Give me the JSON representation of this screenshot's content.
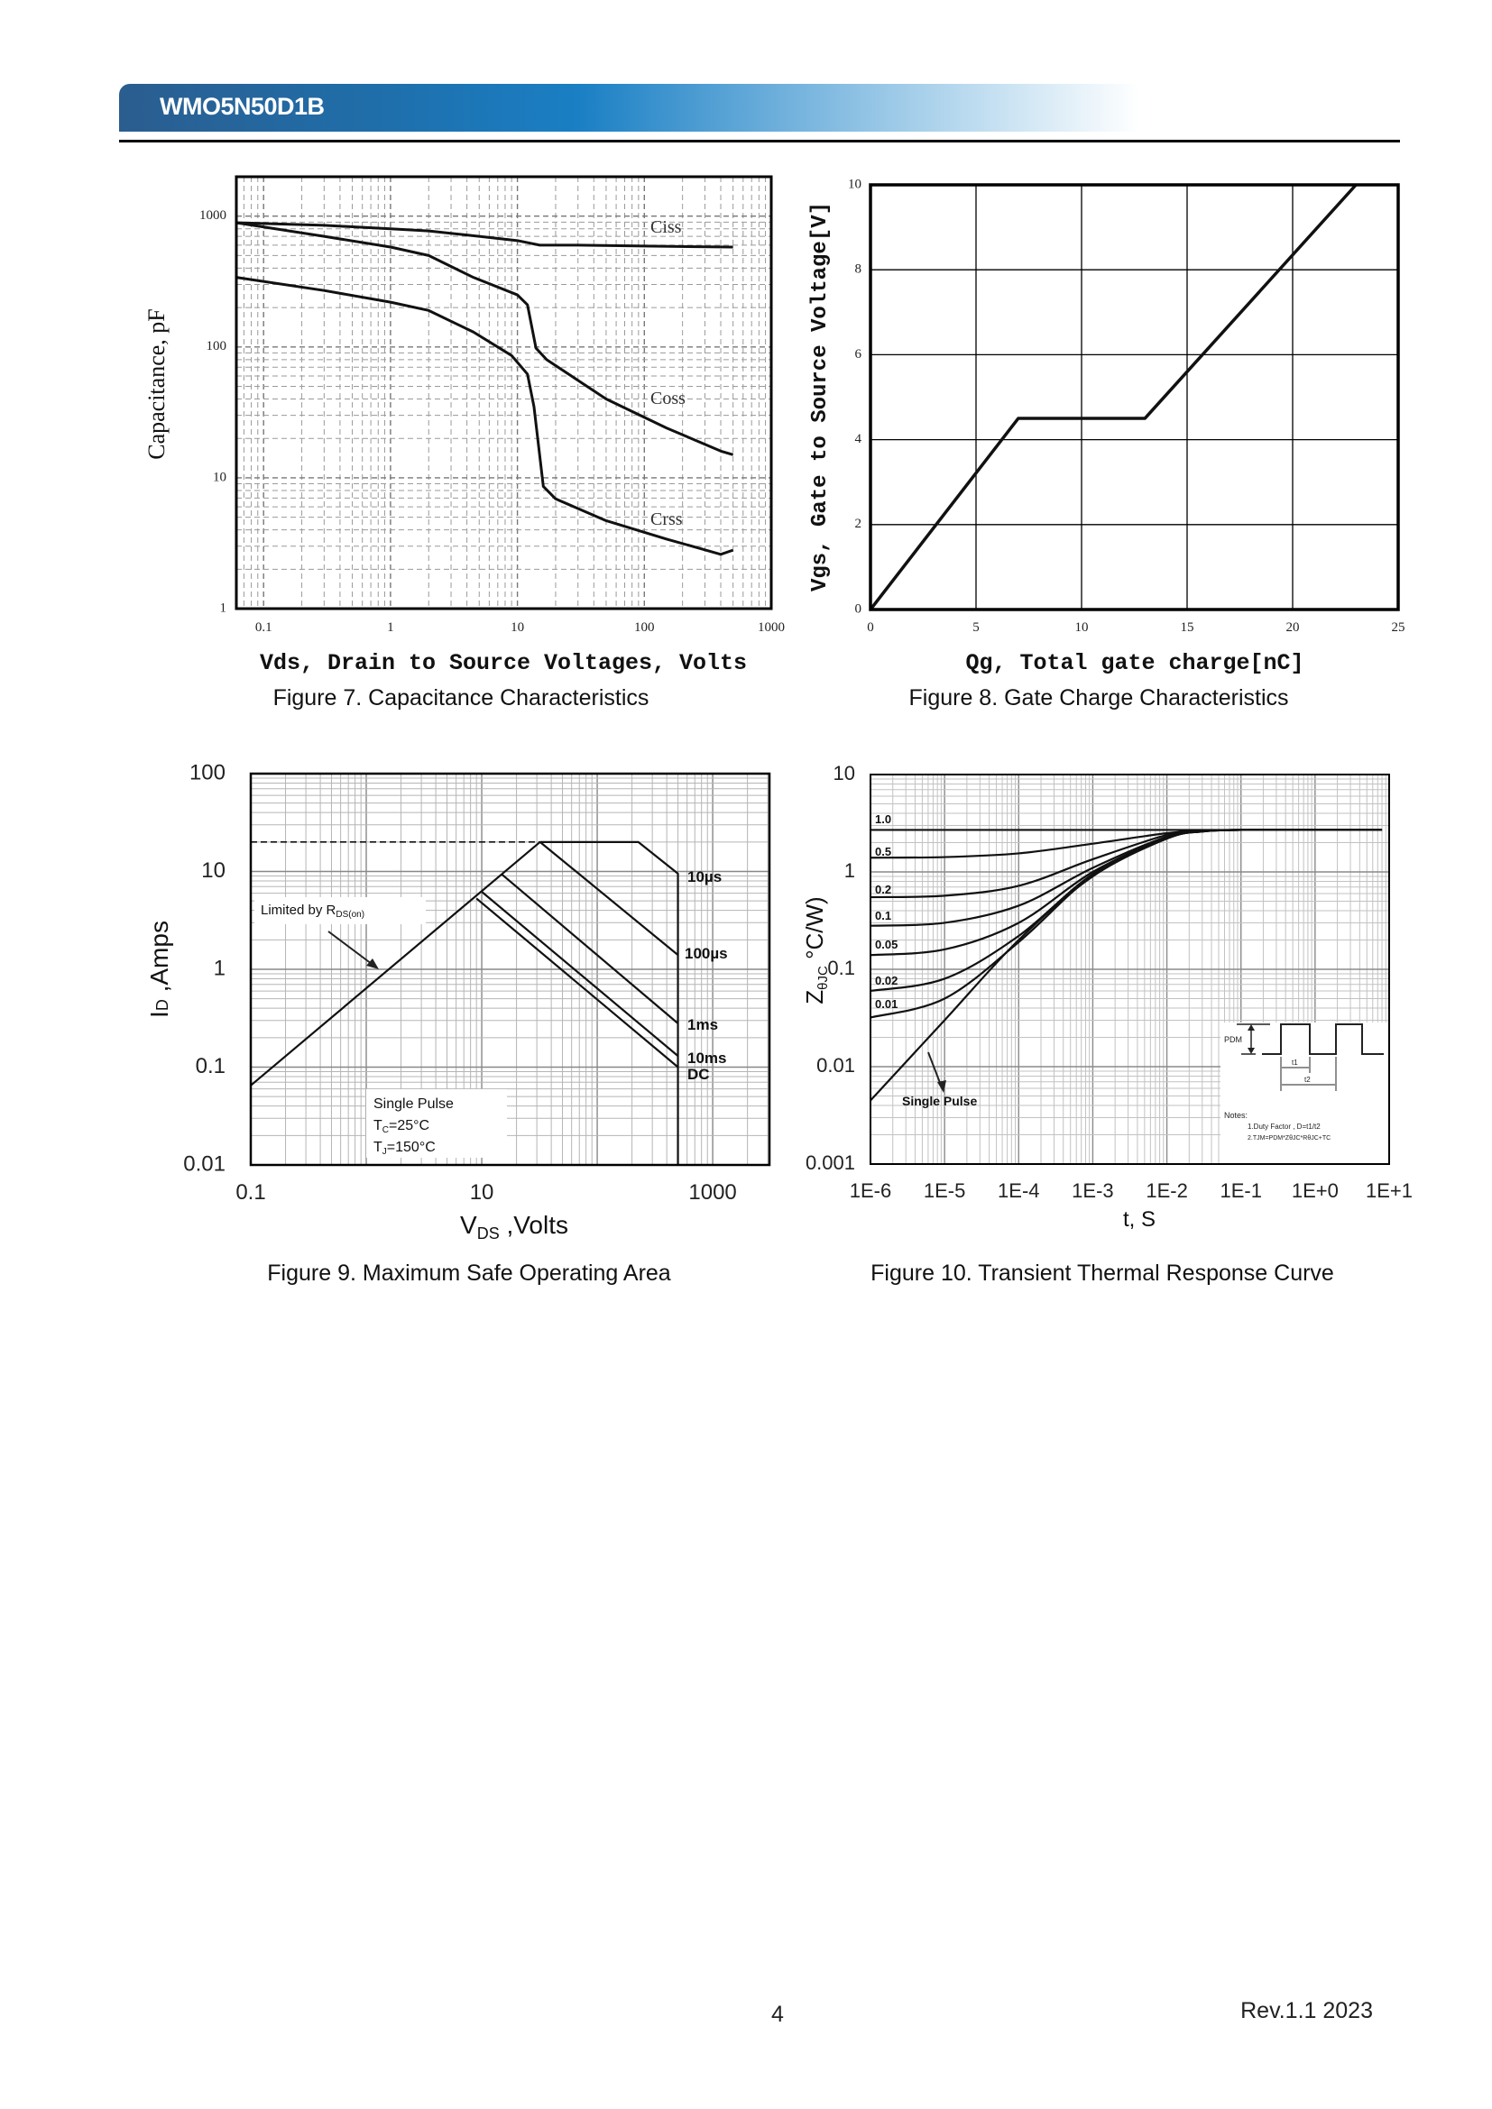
{
  "header": {
    "title": "WMO5N50D1B",
    "brand_color": "#1a7fc4"
  },
  "footer": {
    "page": "4",
    "revision": "Rev.1.1 2023"
  },
  "chart_data": [
    {
      "id": "fig7",
      "type": "line",
      "title": "Figure 7. Capacitance Characteristics",
      "xlabel": "Vds, Drain to Source Voltages, Volts",
      "ylabel": "Capacitance, pF",
      "x_scale": "log",
      "y_scale": "log",
      "xlim": [
        0.061,
        1000
      ],
      "ylim": [
        1,
        2000
      ],
      "grid": "dashed",
      "xticks": [
        {
          "v": 0.1,
          "label": "0.1"
        },
        {
          "v": 1,
          "label": "1"
        },
        {
          "v": 10,
          "label": "10"
        },
        {
          "v": 100,
          "label": "100"
        },
        {
          "v": 1000,
          "label": "1000"
        }
      ],
      "yticks": [
        {
          "v": 1,
          "label": "1"
        },
        {
          "v": 10,
          "label": "10"
        },
        {
          "v": 100,
          "label": "100"
        },
        {
          "v": 1000,
          "label": "1000"
        }
      ],
      "series": [
        {
          "name": "Ciss",
          "x": [
            0.061,
            0.3,
            1,
            2,
            5,
            10,
            15,
            30,
            100,
            500
          ],
          "y": [
            890,
            850,
            800,
            770,
            700,
            650,
            600,
            600,
            590,
            580
          ]
        },
        {
          "name": "Coss",
          "x": [
            0.061,
            0.3,
            1,
            2,
            4.5,
            10,
            12,
            14,
            17,
            50,
            150,
            400,
            500
          ],
          "y": [
            890,
            700,
            580,
            500,
            340,
            250,
            210,
            98,
            80,
            40,
            24,
            16,
            15
          ]
        },
        {
          "name": "Crss",
          "x": [
            0.061,
            0.3,
            1,
            2,
            4.5,
            9,
            12,
            13.5,
            16,
            20,
            50,
            150,
            400,
            500
          ],
          "y": [
            340,
            270,
            220,
            190,
            130,
            86,
            62,
            35,
            8.6,
            6.9,
            4.7,
            3.4,
            2.6,
            2.8
          ]
        }
      ]
    },
    {
      "id": "fig8",
      "type": "line",
      "title": "Figure 8. Gate Charge Characteristics",
      "xlabel": "Qg, Total gate charge[nC]",
      "ylabel": "Vgs, Gate to Source Voltage[V]",
      "x_scale": "linear",
      "y_scale": "linear",
      "xlim": [
        0,
        25
      ],
      "ylim": [
        0,
        10
      ],
      "grid": "solid",
      "xticks": [
        {
          "v": 0,
          "label": "0"
        },
        {
          "v": 5,
          "label": "5"
        },
        {
          "v": 10,
          "label": "10"
        },
        {
          "v": 15,
          "label": "15"
        },
        {
          "v": 20,
          "label": "20"
        },
        {
          "v": 25,
          "label": "25"
        }
      ],
      "yticks": [
        {
          "v": 0,
          "label": "0"
        },
        {
          "v": 2,
          "label": "2"
        },
        {
          "v": 4,
          "label": "4"
        },
        {
          "v": 6,
          "label": "6"
        },
        {
          "v": 8,
          "label": "8"
        },
        {
          "v": 10,
          "label": "10"
        }
      ],
      "series": [
        {
          "x": [
            0,
            7,
            13,
            23
          ],
          "y": [
            0,
            4.5,
            4.5,
            10
          ]
        }
      ]
    },
    {
      "id": "fig9",
      "type": "line",
      "title": "Figure 9. Maximum Safe Operating Area",
      "xlabel": {
        "main": "V",
        "sub": "DS",
        "rest": " ,Volts"
      },
      "ylabel": {
        "main": "I",
        "sub": "D",
        "rest": " ,Amps"
      },
      "x_scale": "log",
      "y_scale": "log",
      "xlim": [
        0.1,
        3100
      ],
      "ylim": [
        0.01,
        100
      ],
      "grid": "solid",
      "xticks": [
        {
          "v": 0.1,
          "label": "0.1"
        },
        {
          "v": 10,
          "label": "10"
        },
        {
          "v": 1000,
          "label": "1000"
        }
      ],
      "yticks": [
        {
          "v": 0.01,
          "label": "0.01"
        },
        {
          "v": 0.1,
          "label": "0.1"
        },
        {
          "v": 1,
          "label": "1"
        },
        {
          "v": 10,
          "label": "10"
        },
        {
          "v": 100,
          "label": "100"
        }
      ],
      "series": [
        {
          "x": [
            0.1,
            32
          ],
          "y": [
            0.065,
            20
          ]
        },
        {
          "x": [
            0.1,
            32
          ],
          "y": [
            20,
            20
          ],
          "style": "dashed"
        },
        {
          "name": "10µs",
          "x": [
            32,
            227,
            500,
            500
          ],
          "y": [
            20,
            20,
            9.5,
            0.01
          ]
        },
        {
          "name": "100µs",
          "x": [
            32,
            500
          ],
          "y": [
            20,
            1.4
          ]
        },
        {
          "name": "1ms",
          "x": [
            15,
            500
          ],
          "y": [
            9.3,
            0.28
          ]
        },
        {
          "name": "10ms",
          "x": [
            10,
            500
          ],
          "y": [
            6.2,
            0.13
          ]
        },
        {
          "name": "DC",
          "x": [
            9,
            500
          ],
          "y": [
            5.3,
            0.1
          ]
        }
      ],
      "annotations": {
        "limit": {
          "main": "Limited by R",
          "sub": "DS(on)"
        },
        "pulse": "Single Pulse",
        "tc": {
          "main": "T",
          "sub": "C",
          "rest": "=25°C"
        },
        "tj": {
          "main": "T",
          "sub": "J",
          "rest": "=150°C"
        }
      }
    },
    {
      "id": "fig10",
      "type": "line",
      "title": "Figure 10. Transient Thermal Response Curve",
      "xlabel": "t, S",
      "ylabel": {
        "main": "Z",
        "sub": "θJC",
        "rest": " °C/W)"
      },
      "x_scale": "log",
      "y_scale": "log",
      "xlim": [
        1e-06,
        10
      ],
      "ylim": [
        0.001,
        10
      ],
      "grid": "solid",
      "xticks": [
        {
          "v": 1e-06,
          "label": "1E-6"
        },
        {
          "v": 1e-05,
          "label": "1E-5"
        },
        {
          "v": 0.0001,
          "label": "1E-4"
        },
        {
          "v": 0.001,
          "label": "1E-3"
        },
        {
          "v": 0.01,
          "label": "1E-2"
        },
        {
          "v": 0.1,
          "label": "1E-1"
        },
        {
          "v": 1,
          "label": "1E+0"
        },
        {
          "v": 10,
          "label": "1E+1"
        }
      ],
      "yticks": [
        {
          "v": 0.001,
          "label": "0.001"
        },
        {
          "v": 0.01,
          "label": "0.01"
        },
        {
          "v": 0.1,
          "label": "0.1"
        },
        {
          "v": 1,
          "label": "1"
        },
        {
          "v": 10,
          "label": "10"
        }
      ],
      "series": [
        {
          "name": "1.0",
          "x": [
            1e-06,
            1e-05,
            0.0001,
            0.001,
            0.01,
            0.03,
            0.1,
            1,
            8
          ],
          "y": [
            2.7,
            2.7,
            2.7,
            2.7,
            2.7,
            2.7,
            2.7,
            2.7,
            2.7
          ]
        },
        {
          "name": "0.5",
          "x": [
            1e-06,
            1e-05,
            0.0001,
            0.001,
            0.01,
            0.03,
            0.1,
            1,
            8
          ],
          "y": [
            1.4,
            1.42,
            1.55,
            1.95,
            2.5,
            2.65,
            2.7,
            2.7,
            2.7
          ]
        },
        {
          "name": "0.2",
          "x": [
            1e-06,
            1e-05,
            0.0001,
            0.001,
            0.01,
            0.03,
            0.1,
            1,
            8
          ],
          "y": [
            0.55,
            0.57,
            0.72,
            1.35,
            2.4,
            2.65,
            2.7,
            2.7,
            2.7
          ]
        },
        {
          "name": "0.1",
          "x": [
            1e-06,
            1e-05,
            0.0001,
            0.001,
            0.01,
            0.03,
            0.1,
            1,
            8
          ],
          "y": [
            0.28,
            0.3,
            0.45,
            1.1,
            2.3,
            2.62,
            2.7,
            2.7,
            2.7
          ]
        },
        {
          "name": "0.05",
          "x": [
            1e-06,
            1e-05,
            0.0001,
            0.001,
            0.01,
            0.03,
            0.1,
            1,
            8
          ],
          "y": [
            0.14,
            0.16,
            0.3,
            1.0,
            2.25,
            2.6,
            2.7,
            2.7,
            2.7
          ]
        },
        {
          "name": "0.02",
          "x": [
            1e-06,
            1e-05,
            0.0001,
            0.001,
            0.01,
            0.03,
            0.1,
            1,
            8
          ],
          "y": [
            0.06,
            0.08,
            0.22,
            0.95,
            2.2,
            2.6,
            2.7,
            2.7,
            2.7
          ]
        },
        {
          "name": "0.01",
          "x": [
            1e-06,
            1e-05,
            0.0001,
            0.001,
            0.01,
            0.03,
            0.1,
            1,
            8
          ],
          "y": [
            0.032,
            0.05,
            0.19,
            0.92,
            2.2,
            2.6,
            2.7,
            2.7,
            2.7
          ]
        },
        {
          "x": [
            1e-06,
            1e-05,
            0.0001,
            0.001,
            0.01,
            0.03,
            0.1,
            1,
            8
          ],
          "y": [
            0.0045,
            0.03,
            0.2,
            0.9,
            2.2,
            2.6,
            2.7,
            2.7,
            2.7
          ]
        }
      ],
      "annotations": {
        "pulse": "Single Pulse",
        "pdm": "PDM",
        "t1": "t1",
        "t2": "t2",
        "notes": "Notes:",
        "note1": "1.Duty Factor , D=t1/t2",
        "note2": "2.TJM=PDM*ZθJC*RθJC+TC"
      }
    }
  ]
}
